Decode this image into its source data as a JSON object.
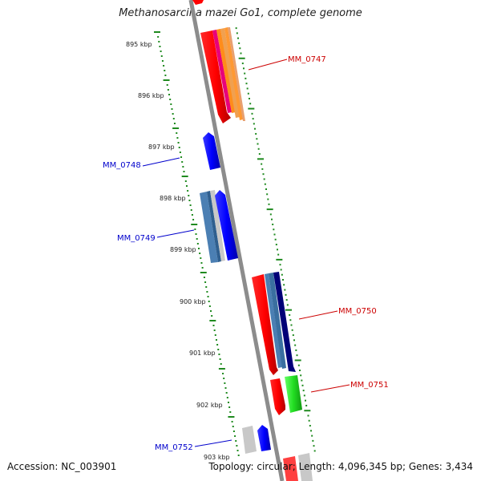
{
  "title": "Methanosarcina mazei Go1, complete genome",
  "footer": {
    "accession": "Accession: NC_003901",
    "summary": "Topology: circular; Length: 4,096,345 bp; Genes: 3,434"
  },
  "ticks": [
    "895 kbp",
    "896 kbp",
    "897 kbp",
    "898 kbp",
    "899 kbp",
    "900 kbp",
    "901 kbp",
    "902 kbp",
    "903 kbp"
  ],
  "gene_labels": [
    {
      "text": "MM_0747",
      "strand": "forward"
    },
    {
      "text": "MM_0748",
      "strand": "reverse"
    },
    {
      "text": "MM_0749",
      "strand": "reverse"
    },
    {
      "text": "MM_0750",
      "strand": "forward"
    },
    {
      "text": "MM_0751",
      "strand": "forward"
    },
    {
      "text": "MM_0752",
      "strand": "reverse"
    }
  ],
  "colors": {
    "forward_label": "#cc0000",
    "reverse_label": "#0000cc",
    "tick": "#1f8a1f",
    "backbone": "#8c8c8c"
  }
}
